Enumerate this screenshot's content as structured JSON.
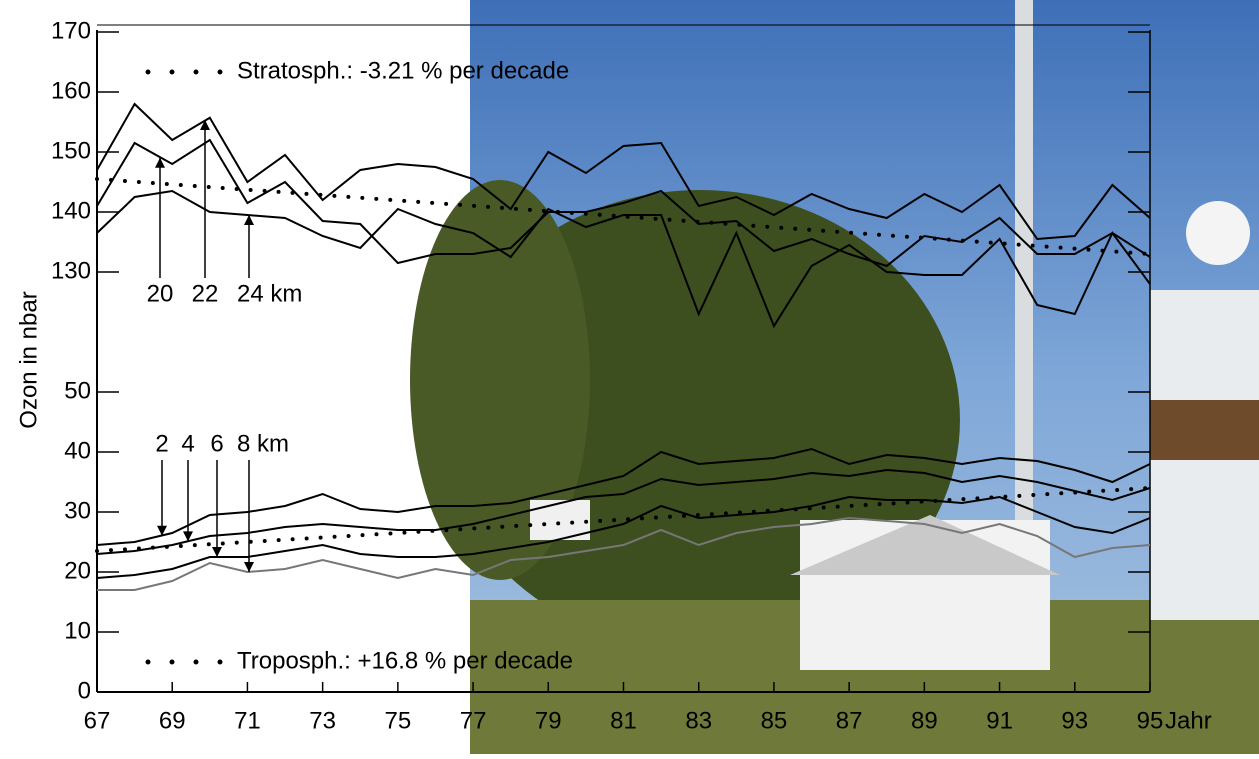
{
  "chart_data": {
    "type": "line",
    "x_label": "Jahr",
    "y_label": "Ozon in nbar",
    "x": [
      67,
      68,
      69,
      70,
      71,
      72,
      73,
      74,
      75,
      76,
      77,
      78,
      79,
      80,
      81,
      82,
      83,
      84,
      85,
      86,
      87,
      88,
      89,
      90,
      91,
      92,
      93,
      94,
      95
    ],
    "xlim": [
      67,
      95
    ],
    "xticks": [
      67,
      69,
      71,
      73,
      75,
      77,
      79,
      81,
      83,
      85,
      87,
      89,
      91,
      93,
      95
    ],
    "ylim": [
      0,
      170
    ],
    "ybreak": [
      60,
      120
    ],
    "yticks": [
      0,
      10,
      20,
      30,
      40,
      50,
      130,
      140,
      150,
      160,
      170
    ],
    "series": [
      {
        "name": "22",
        "color": "#000000",
        "values": [
          147,
          158,
          152,
          155.7,
          145,
          149.5,
          142,
          147,
          148,
          147.5,
          145.5,
          140.5,
          150,
          146.5,
          151,
          151.5,
          141,
          142.5,
          139.5,
          143,
          140.5,
          139,
          143,
          140,
          144.5,
          135.5,
          136,
          144.5,
          139
        ]
      },
      {
        "name": "20",
        "color": "#000000",
        "values": [
          141,
          151.5,
          148,
          152,
          141.5,
          145,
          138.5,
          138,
          131.5,
          133,
          133,
          134,
          140,
          140,
          141.5,
          143.5,
          138,
          138.5,
          133.5,
          135.5,
          133,
          131,
          136,
          135,
          139,
          133,
          133,
          136.5,
          132.5
        ]
      },
      {
        "name": "24 km",
        "color": "#000000",
        "values": [
          136.5,
          142.5,
          143.5,
          140,
          139.5,
          139,
          136,
          134,
          140.5,
          138,
          136.5,
          132.5,
          140.5,
          137.5,
          139.5,
          139.5,
          123,
          136.5,
          121,
          131,
          134.5,
          130,
          129.5,
          129.5,
          135.5,
          124.5,
          123,
          136.5,
          128
        ]
      },
      {
        "name": "2",
        "color": "#000000",
        "values": [
          24.5,
          25,
          26.5,
          29.5,
          30,
          31,
          33,
          30.5,
          30,
          31,
          31,
          31.5,
          33,
          34.5,
          36,
          40,
          38,
          38.5,
          39,
          40.5,
          38,
          39.5,
          39,
          38,
          39,
          38.5,
          37,
          35,
          38
        ]
      },
      {
        "name": "4",
        "color": "#000000",
        "values": [
          23,
          23.5,
          24.5,
          26,
          26.5,
          27.5,
          28,
          27.5,
          27,
          27,
          28,
          29.5,
          31,
          32.5,
          33,
          35.5,
          34.5,
          35,
          35.5,
          36.5,
          36,
          37,
          36.5,
          35,
          36,
          35,
          33.5,
          32,
          34
        ]
      },
      {
        "name": "6",
        "color": "#000000",
        "values": [
          19,
          19.5,
          20.5,
          22.5,
          22.5,
          23.5,
          24.5,
          23,
          22.5,
          22.5,
          23,
          24,
          25,
          26.5,
          28,
          31,
          29,
          29.5,
          30,
          31,
          32.5,
          32,
          32,
          31.5,
          32.5,
          30,
          27.5,
          26.5,
          29
        ]
      },
      {
        "name": "8 km",
        "color": "#777777",
        "values": [
          17,
          17,
          18.5,
          21.5,
          20,
          20.5,
          22,
          20.5,
          19,
          20.5,
          19.5,
          22,
          22.5,
          23.5,
          24.5,
          27,
          24.5,
          26.5,
          27.5,
          28,
          29,
          28.5,
          28,
          26.5,
          28,
          26,
          22.5,
          24,
          24.5
        ]
      }
    ],
    "trends": [
      {
        "name": "Stratosph.: -3.21 % per decade",
        "x": [
          67,
          95
        ],
        "values": [
          145.5,
          133
        ]
      },
      {
        "name": "Troposph.: +16.8 % per decade",
        "x": [
          67,
          95
        ],
        "values": [
          23.5,
          34
        ]
      }
    ]
  }
}
